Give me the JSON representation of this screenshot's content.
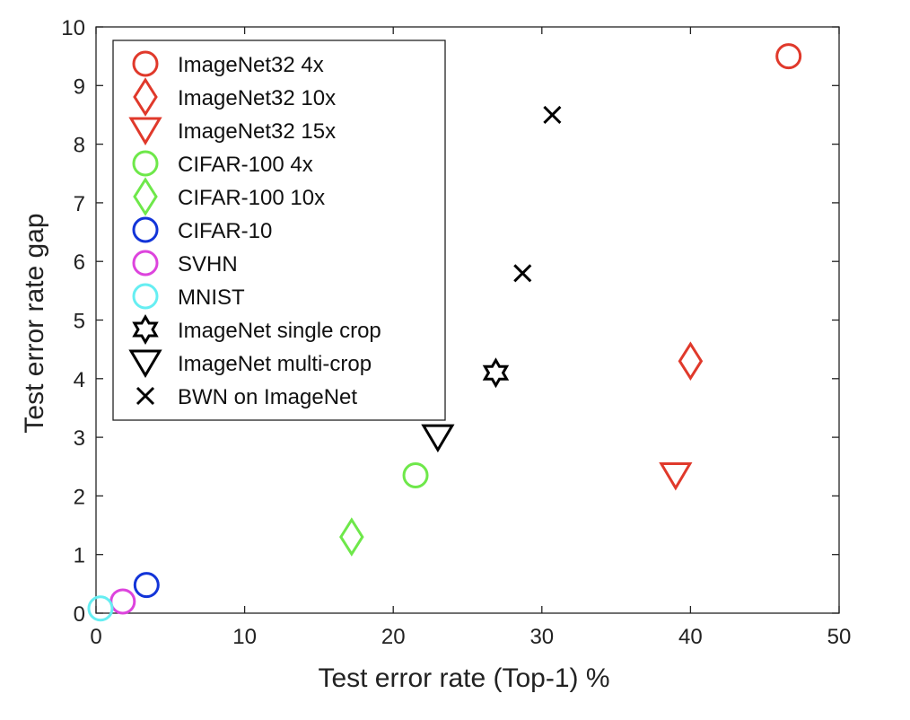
{
  "chart_data": {
    "type": "scatter",
    "title": "",
    "xlabel": "Test error rate (Top-1) %",
    "ylabel": "Test error rate gap",
    "xlim": [
      0,
      50
    ],
    "ylim": [
      0,
      10
    ],
    "xticks": [
      "0",
      "10",
      "20",
      "30",
      "40",
      "50"
    ],
    "yticks": [
      "0",
      "1",
      "2",
      "3",
      "4",
      "5",
      "6",
      "7",
      "8",
      "9",
      "10"
    ],
    "grid": false,
    "legend_position": "top-left",
    "series": [
      {
        "name": "ImageNet32 4x",
        "marker": "circle",
        "color": "#e0392b",
        "points": [
          {
            "x": 46.6,
            "y": 9.5
          }
        ]
      },
      {
        "name": "ImageNet32 10x",
        "marker": "diamond",
        "color": "#e0392b",
        "points": [
          {
            "x": 40.0,
            "y": 4.3
          }
        ]
      },
      {
        "name": "ImageNet32 15x",
        "marker": "triangle-down",
        "color": "#e0392b",
        "points": [
          {
            "x": 39.0,
            "y": 2.35
          }
        ]
      },
      {
        "name": "CIFAR-100 4x",
        "marker": "circle",
        "color": "#6ee84a",
        "points": [
          {
            "x": 21.5,
            "y": 2.35
          }
        ]
      },
      {
        "name": "CIFAR-100 10x",
        "marker": "diamond",
        "color": "#6ee84a",
        "points": [
          {
            "x": 17.2,
            "y": 1.3
          }
        ]
      },
      {
        "name": "CIFAR-10",
        "marker": "circle",
        "color": "#1234d8",
        "points": [
          {
            "x": 3.4,
            "y": 0.48
          }
        ]
      },
      {
        "name": "SVHN",
        "marker": "circle",
        "color": "#dd44dd",
        "points": [
          {
            "x": 1.8,
            "y": 0.2
          }
        ]
      },
      {
        "name": "MNIST",
        "marker": "circle",
        "color": "#66eef2",
        "points": [
          {
            "x": 0.3,
            "y": 0.08
          }
        ]
      },
      {
        "name": "ImageNet single crop",
        "marker": "hexagram",
        "color": "#000000",
        "points": [
          {
            "x": 26.9,
            "y": 4.1
          }
        ]
      },
      {
        "name": "ImageNet multi-crop",
        "marker": "triangle-down",
        "color": "#000000",
        "points": [
          {
            "x": 23.0,
            "y": 3.0
          }
        ]
      },
      {
        "name": "BWN on ImageNet",
        "marker": "x",
        "color": "#000000",
        "points": [
          {
            "x": 30.7,
            "y": 8.5
          },
          {
            "x": 28.7,
            "y": 5.8
          }
        ]
      }
    ]
  }
}
